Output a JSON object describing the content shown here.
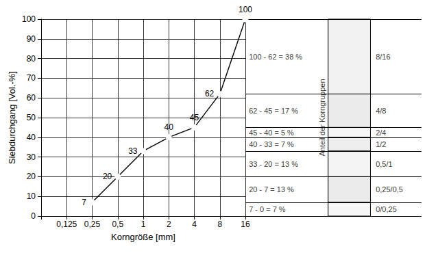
{
  "chart_data": {
    "type": "line",
    "x_label": "Korngröße [mm]",
    "y_label": "Siebdurchgang [Vol.-%]",
    "x": [
      0.25,
      0.5,
      1,
      2,
      4,
      8,
      16
    ],
    "values": [
      7,
      20,
      33,
      40,
      45,
      62,
      100
    ],
    "color": "#000000",
    "marker": "circle",
    "line_style": "solid",
    "data_labels": true,
    "log": "x",
    "xlim": [
      0.0625,
      16
    ],
    "xticks": [
      {
        "value": 0.125,
        "label": "0,125"
      },
      {
        "value": 0.25,
        "label": "0,25"
      },
      {
        "value": 0.5,
        "label": "0,5"
      },
      1,
      2,
      4,
      8,
      16
    ],
    "ylim": [
      0,
      100
    ],
    "yticks": [
      0,
      10,
      20,
      30,
      40,
      50,
      60,
      70,
      80,
      90,
      100
    ],
    "grid": true,
    "groups_title": "Anteil der Korngruppen",
    "groups": [
      {
        "label": "100 - 62 = 38 %",
        "name": "8/16",
        "from": 62,
        "to": 100
      },
      {
        "label": "62 - 45 = 17 %",
        "name": "4/8",
        "from": 45,
        "to": 62
      },
      {
        "label": "45 - 40 = 5 %",
        "name": "2/4",
        "from": 40,
        "to": 45
      },
      {
        "label": "40 - 33 = 7 %",
        "name": "1/2",
        "from": 33,
        "to": 40
      },
      {
        "label": "33 - 20 = 13 %",
        "name": "0,5/1",
        "from": 20,
        "to": 33
      },
      {
        "label": "20 - 7 = 13 %",
        "name": "0,25/0,5",
        "from": 7,
        "to": 20
      },
      {
        "label": "7 - 0 = 7 %",
        "name": "0/0,25",
        "from": 0,
        "to": 7
      }
    ]
  }
}
